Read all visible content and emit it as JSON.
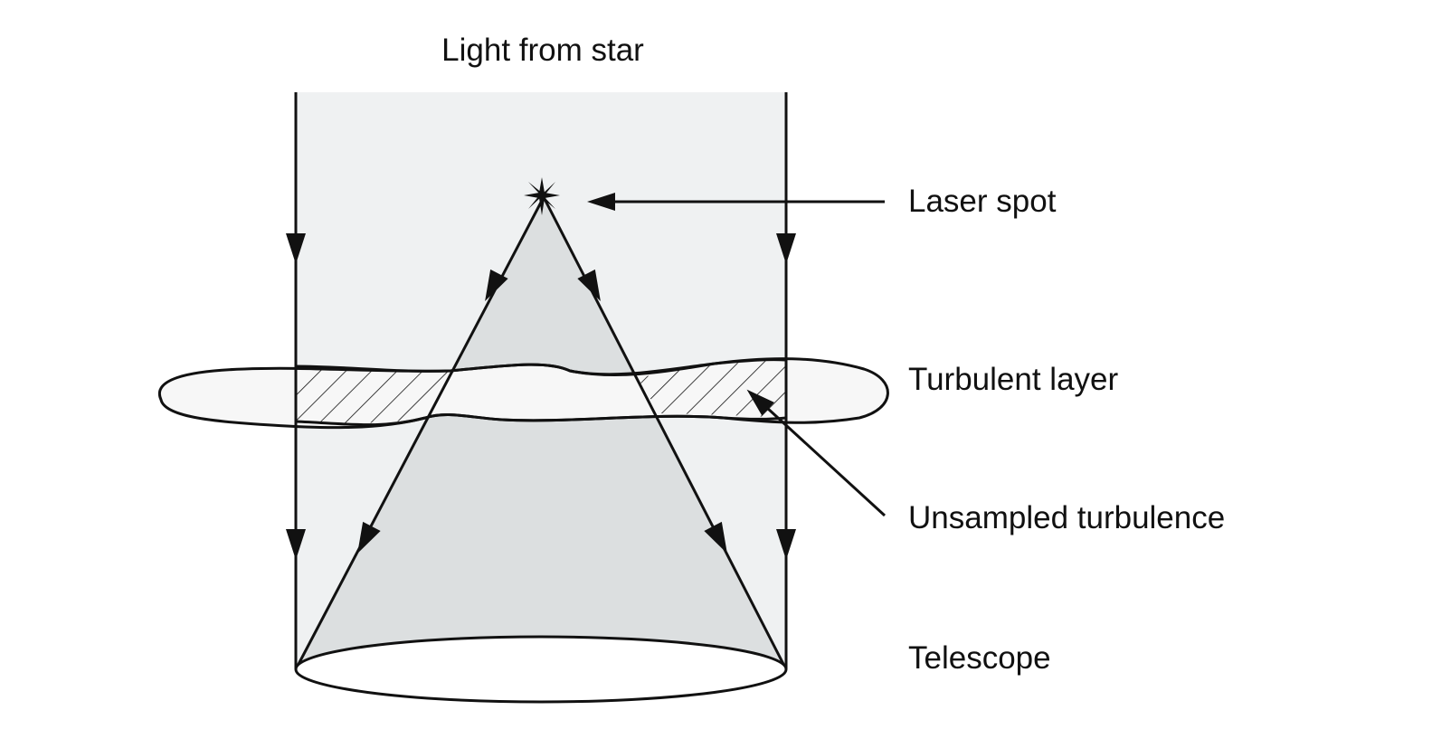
{
  "labels": {
    "top": "Light from star",
    "laser_spot": "Laser spot",
    "turbulent_layer": "Turbulent layer",
    "unsampled_turbulence": "Unsampled turbulence",
    "telescope": "Telescope"
  },
  "colors": {
    "starlight_beam_fill": "#eff1f2",
    "laser_cone_fill": "#dcdfe0",
    "turbulent_layer_fill": "#f7f7f7",
    "stroke": "#111111",
    "telescope_fill": "#ffffff"
  }
}
